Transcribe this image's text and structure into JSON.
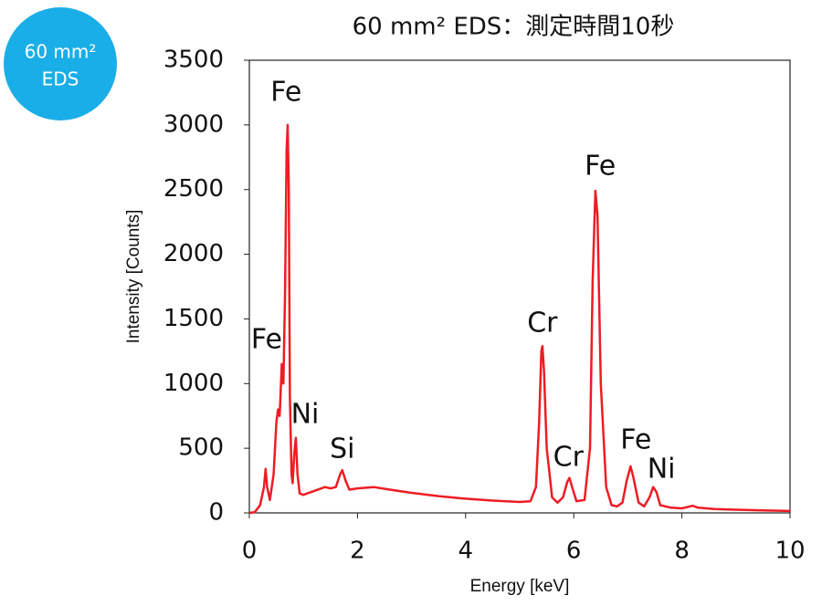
{
  "badge": {
    "lines": [
      "60 mm²",
      "EDS"
    ]
  },
  "chart_data": {
    "type": "line",
    "title": "60 mm² EDS：測定時間10秒",
    "x_label": "Energy [keV]",
    "y_label": "Intensity [Counts]",
    "xlim": [
      0,
      10
    ],
    "xticks": [
      0,
      2,
      4,
      6,
      8,
      10
    ],
    "ylim": [
      0,
      3500
    ],
    "yticks": [
      0,
      500,
      1000,
      1500,
      2000,
      2500,
      3000,
      3500
    ],
    "color": "#ee1c24",
    "x": [
      0,
      0.1,
      0.2,
      0.27,
      0.3,
      0.33,
      0.38,
      0.45,
      0.5,
      0.53,
      0.56,
      0.6,
      0.63,
      0.66,
      0.69,
      0.71,
      0.73,
      0.75,
      0.78,
      0.8,
      0.83,
      0.86,
      0.89,
      0.93,
      1.0,
      1.2,
      1.4,
      1.5,
      1.6,
      1.68,
      1.72,
      1.78,
      1.85,
      2.0,
      2.3,
      2.6,
      3.0,
      3.5,
      4.0,
      4.5,
      5.0,
      5.2,
      5.3,
      5.36,
      5.4,
      5.42,
      5.45,
      5.5,
      5.6,
      5.7,
      5.8,
      5.88,
      5.92,
      5.97,
      6.05,
      6.2,
      6.3,
      6.35,
      6.4,
      6.44,
      6.5,
      6.6,
      6.7,
      6.8,
      6.9,
      6.98,
      7.05,
      7.1,
      7.2,
      7.3,
      7.4,
      7.47,
      7.53,
      7.6,
      7.8,
      8.0,
      8.2,
      8.3,
      8.6,
      9.0,
      9.5,
      10
    ],
    "values": [
      0,
      5,
      60,
      200,
      340,
      200,
      100,
      300,
      700,
      800,
      750,
      1150,
      1000,
      1700,
      2800,
      3000,
      2500,
      900,
      300,
      230,
      450,
      580,
      300,
      150,
      140,
      170,
      200,
      190,
      200,
      300,
      330,
      250,
      180,
      190,
      200,
      180,
      155,
      130,
      110,
      95,
      85,
      90,
      200,
      700,
      1250,
      1290,
      1100,
      500,
      120,
      80,
      120,
      240,
      270,
      200,
      90,
      100,
      500,
      1800,
      2490,
      2300,
      1000,
      200,
      60,
      50,
      80,
      250,
      360,
      280,
      80,
      50,
      120,
      200,
      160,
      60,
      40,
      35,
      55,
      40,
      30,
      25,
      20,
      15
    ],
    "annotations": [
      {
        "text": "Fe",
        "x": 0.68,
        "y": 3246
      },
      {
        "text": "Fe",
        "x": 0.32,
        "y": 1334
      },
      {
        "text": "Ni",
        "x": 1.03,
        "y": 755
      },
      {
        "text": "Si",
        "x": 1.72,
        "y": 487
      },
      {
        "text": "Cr",
        "x": 5.42,
        "y": 1461
      },
      {
        "text": "Cr",
        "x": 5.9,
        "y": 423
      },
      {
        "text": "Fe",
        "x": 6.49,
        "y": 2675
      },
      {
        "text": "Fe",
        "x": 7.15,
        "y": 557
      },
      {
        "text": "Ni",
        "x": 7.62,
        "y": 332
      }
    ]
  }
}
